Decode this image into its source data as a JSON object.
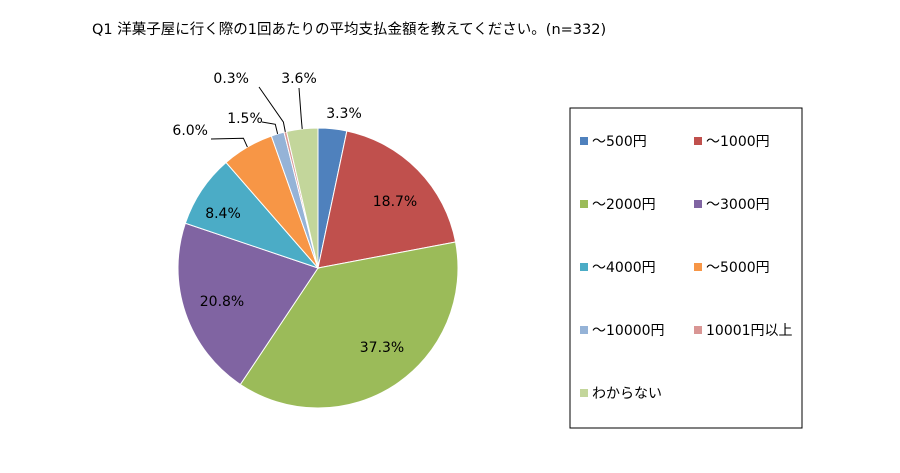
{
  "chart_data": {
    "type": "pie",
    "title": "Q1 洋菓子屋に行く際の1回あたりの平均支払金額を教えてください。(n=332)",
    "categories": [
      "〜500円",
      "〜1000円",
      "〜2000円",
      "〜3000円",
      "〜4000円",
      "〜5000円",
      "〜10000円",
      "10001円以上",
      "わからない"
    ],
    "values": [
      3.3,
      18.7,
      37.3,
      20.8,
      8.4,
      6.0,
      1.5,
      0.3,
      3.6
    ],
    "data_labels": [
      "3.3%",
      "18.7%",
      "37.3%",
      "20.8%",
      "8.4%",
      "6.0%",
      "1.5%",
      "0.3%",
      "3.6%"
    ],
    "colors": [
      "#4f81bd",
      "#c0504d",
      "#9bbb59",
      "#8064a2",
      "#4bacc6",
      "#f79646",
      "#95b3d7",
      "#d99694",
      "#c3d69b"
    ],
    "start_angle": "12 o'clock",
    "direction": "clockwise",
    "legend_position": "right"
  }
}
